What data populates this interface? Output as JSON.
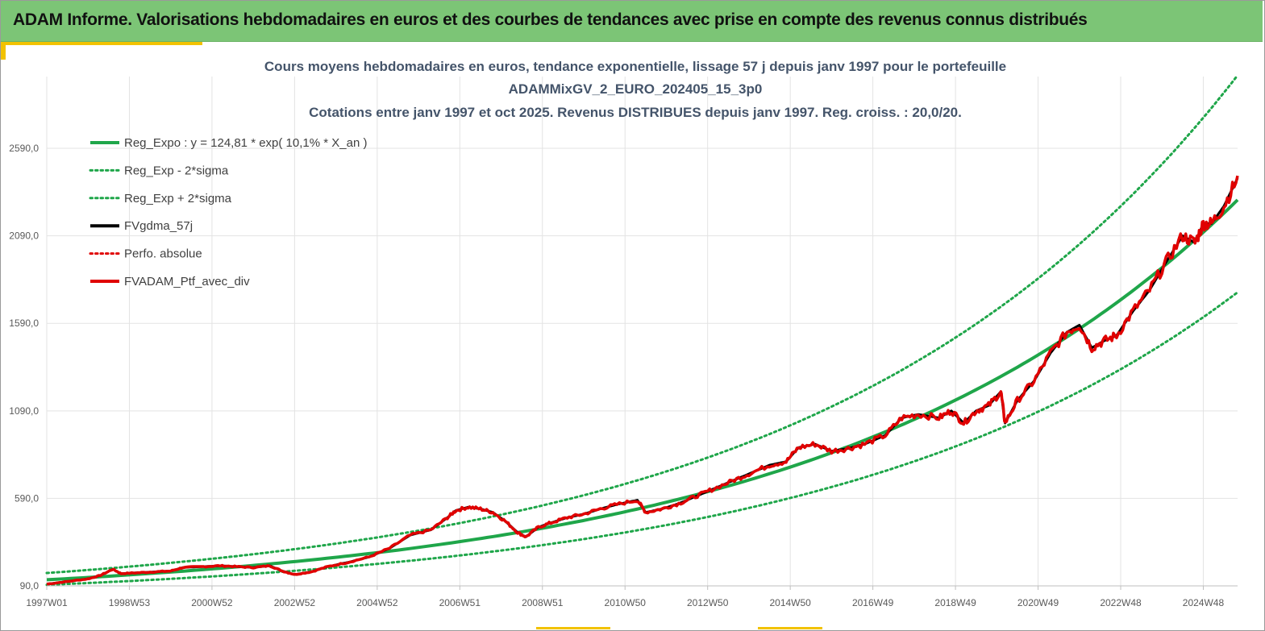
{
  "banner": {
    "title": "ADAM Informe. Valorisations hebdomadaires en euros et des courbes de tendances avec prise en compte des revenus connus distribués"
  },
  "chart_data": {
    "type": "line",
    "title": [
      "Cours moyens hebdomadaires  en euros, tendance exponentielle, lissage 57 j depuis janv 1997 pour le portefeuille",
      "ADAMMixGV_2_EURO_202405_15_3p0",
      "Cotations  entre janv 1997 et oct 2025. Revenus DISTRIBUES depuis janv 1997. Reg. croiss. : 20,0/20."
    ],
    "xlabel": "",
    "ylabel": "",
    "x_tick_labels": [
      "1997W01",
      "1998W53",
      "2000W52",
      "2002W52",
      "2004W52",
      "2006W51",
      "2008W51",
      "2010W50",
      "2012W50",
      "2014W50",
      "2016W49",
      "2018W49",
      "2020W49",
      "2022W48",
      "2024W48"
    ],
    "x_tick_years": [
      1997.0,
      1999.0,
      2001.0,
      2003.0,
      2005.0,
      2007.0,
      2009.0,
      2011.0,
      2013.0,
      2015.0,
      2017.0,
      2019.0,
      2021.0,
      2023.0,
      2025.0
    ],
    "xlim": [
      1997.0,
      2025.83
    ],
    "y_ticks": [
      90,
      590,
      1090,
      1590,
      2090,
      2590
    ],
    "y_tick_labels": [
      "90,0",
      "590,0",
      "1090,0",
      "1590,0",
      "2090,0",
      "2590,0"
    ],
    "ylim": [
      90,
      3000
    ],
    "grid": "horizontal and vertical",
    "legend_position": "top-left",
    "trend": {
      "a": 124.81,
      "rate": 0.101,
      "band_factor_upper": 1.31,
      "band_factor_lower": 0.77
    },
    "series": [
      {
        "name": "Reg_Expo : y = 124,81 * exp( 10,1% *  X_an )",
        "color": "#1fa64a",
        "style": "solid"
      },
      {
        "name": "Reg_Exp - 2*sigma",
        "color": "#1fa64a",
        "style": "dotted"
      },
      {
        "name": "Reg_Exp + 2*sigma",
        "color": "#1fa64a",
        "style": "dotted"
      },
      {
        "name": "FVgdma_57j",
        "color": "#000000",
        "style": "solid"
      },
      {
        "name": "Perfo. absolue",
        "color": "#e00000",
        "style": "dotted"
      },
      {
        "name": "FVADAM_Ptf_avec_div",
        "color": "#e00000",
        "style": "solid",
        "points": [
          [
            1997.0,
            100
          ],
          [
            1997.5,
            115
          ],
          [
            1998.0,
            130
          ],
          [
            1998.3,
            150
          ],
          [
            1998.6,
            185
          ],
          [
            1998.8,
            160
          ],
          [
            1999.2,
            165
          ],
          [
            1999.6,
            170
          ],
          [
            2000.0,
            175
          ],
          [
            2000.3,
            195
          ],
          [
            2000.8,
            200
          ],
          [
            2001.2,
            205
          ],
          [
            2001.6,
            200
          ],
          [
            2002.0,
            195
          ],
          [
            2002.4,
            205
          ],
          [
            2002.7,
            175
          ],
          [
            2003.0,
            155
          ],
          [
            2003.4,
            170
          ],
          [
            2003.8,
            200
          ],
          [
            2004.3,
            225
          ],
          [
            2004.8,
            255
          ],
          [
            2005.3,
            305
          ],
          [
            2005.8,
            380
          ],
          [
            2006.3,
            410
          ],
          [
            2006.7,
            480
          ],
          [
            2006.9,
            520
          ],
          [
            2007.2,
            540
          ],
          [
            2007.5,
            530
          ],
          [
            2007.8,
            510
          ],
          [
            2008.1,
            460
          ],
          [
            2008.4,
            395
          ],
          [
            2008.6,
            370
          ],
          [
            2008.9,
            425
          ],
          [
            2009.2,
            450
          ],
          [
            2009.6,
            480
          ],
          [
            2010.0,
            500
          ],
          [
            2010.4,
            530
          ],
          [
            2010.8,
            555
          ],
          [
            2011.3,
            580
          ],
          [
            2011.5,
            510
          ],
          [
            2011.9,
            530
          ],
          [
            2012.3,
            560
          ],
          [
            2012.7,
            600
          ],
          [
            2013.1,
            640
          ],
          [
            2013.6,
            690
          ],
          [
            2014.0,
            730
          ],
          [
            2014.5,
            780
          ],
          [
            2014.9,
            800
          ],
          [
            2015.2,
            880
          ],
          [
            2015.6,
            900
          ],
          [
            2016.0,
            860
          ],
          [
            2016.4,
            875
          ],
          [
            2016.8,
            900
          ],
          [
            2017.3,
            950
          ],
          [
            2017.7,
            1050
          ],
          [
            2018.1,
            1070
          ],
          [
            2018.6,
            1050
          ],
          [
            2018.9,
            1090
          ],
          [
            2019.2,
            1020
          ],
          [
            2019.5,
            1090
          ],
          [
            2019.8,
            1120
          ],
          [
            2020.1,
            1200
          ],
          [
            2020.2,
            1020
          ],
          [
            2020.5,
            1150
          ],
          [
            2020.9,
            1260
          ],
          [
            2021.3,
            1420
          ],
          [
            2021.7,
            1540
          ],
          [
            2022.0,
            1580
          ],
          [
            2022.3,
            1450
          ],
          [
            2022.6,
            1490
          ],
          [
            2022.9,
            1520
          ],
          [
            2023.3,
            1660
          ],
          [
            2023.7,
            1780
          ],
          [
            2024.1,
            1940
          ],
          [
            2024.5,
            2090
          ],
          [
            2024.8,
            2050
          ],
          [
            2025.0,
            2160
          ],
          [
            2025.2,
            2160
          ],
          [
            2025.5,
            2260
          ],
          [
            2025.83,
            2420
          ]
        ]
      }
    ]
  }
}
